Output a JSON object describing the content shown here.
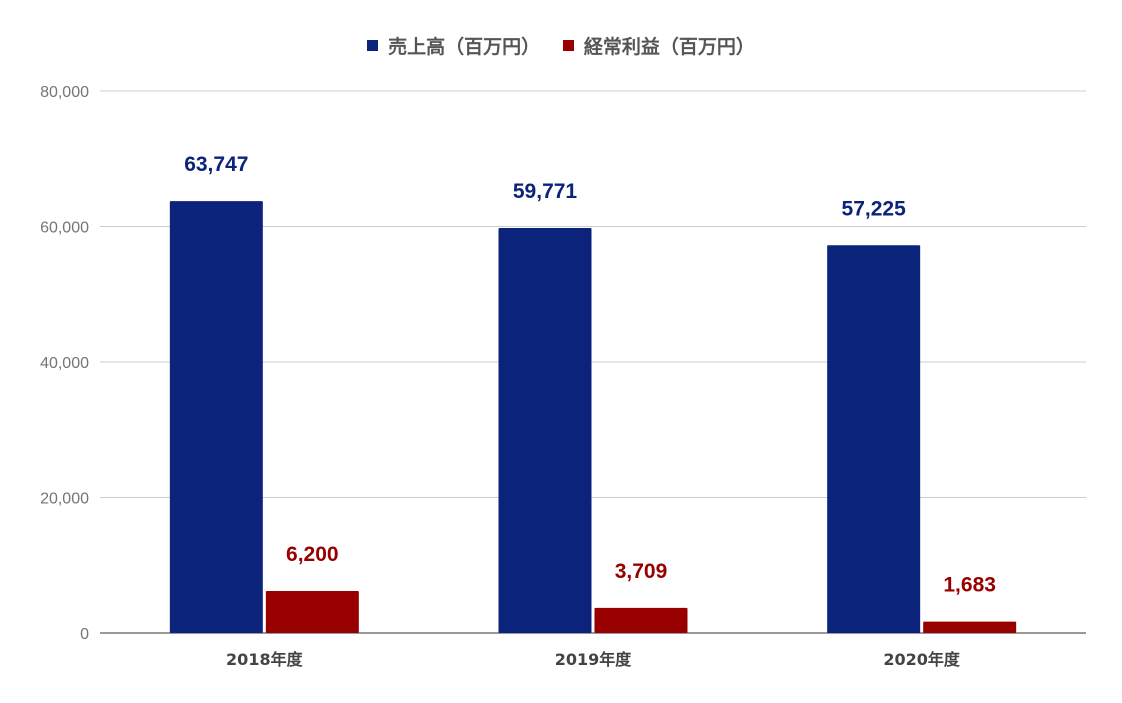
{
  "legend": [
    {
      "label": "売上高（百万円）",
      "color": "#0b237a"
    },
    {
      "label": "経常利益（百万円）",
      "color": "#980000"
    }
  ],
  "chart_data": {
    "type": "bar",
    "categories": [
      "2018年度",
      "2019年度",
      "2020年度"
    ],
    "series": [
      {
        "name": "売上高（百万円）",
        "values": [
          63747,
          59771,
          57225
        ],
        "labels": [
          "63,747",
          "59,771",
          "57,225"
        ],
        "color": "#0b237a"
      },
      {
        "name": "経常利益（百万円）",
        "values": [
          6200,
          3709,
          1683
        ],
        "labels": [
          "6,200",
          "3,709",
          "1,683"
        ],
        "color": "#980000"
      }
    ],
    "y_ticks": [
      "0",
      "20,000",
      "40,000",
      "60,000",
      "80,000"
    ],
    "ylim": [
      0,
      80000
    ],
    "grid": true,
    "legend_position": "top"
  }
}
